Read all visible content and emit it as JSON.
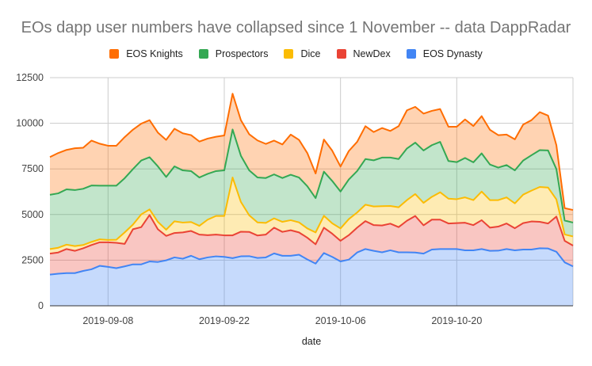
{
  "chart_data": {
    "type": "area",
    "stacked": true,
    "title": "EOs dapp user numbers have collapsed since 1 November -- data DappRadar",
    "xlabel": "date",
    "ylabel": "",
    "ylim": [
      0,
      12500
    ],
    "yticks": [
      "0",
      "2500",
      "5000",
      "7500",
      "10000",
      "12500"
    ],
    "ytick_values": [
      0,
      2500,
      5000,
      7500,
      10000,
      12500
    ],
    "x_start": "2019-09-01",
    "x_end": "2019-11-03",
    "xticks": [
      "2019-09-08",
      "2019-09-22",
      "2019-10-06",
      "2019-10-20"
    ],
    "xtick_day_index": [
      7,
      21,
      35,
      49
    ],
    "grid": true,
    "legend_position": "top",
    "series": [
      {
        "name": "EOS Dynasty",
        "color": "#4285f4",
        "values": [
          1710,
          1760,
          1790,
          1790,
          1910,
          2000,
          2190,
          2130,
          2060,
          2160,
          2270,
          2270,
          2430,
          2400,
          2490,
          2650,
          2580,
          2740,
          2550,
          2650,
          2710,
          2680,
          2610,
          2710,
          2720,
          2620,
          2650,
          2870,
          2740,
          2740,
          2800,
          2540,
          2310,
          2890,
          2680,
          2430,
          2530,
          2920,
          3110,
          3010,
          2930,
          3040,
          2930,
          2930,
          2920,
          2860,
          3080,
          3110,
          3110,
          3110,
          3040,
          3040,
          3110,
          3010,
          3020,
          3110,
          3040,
          3080,
          3080,
          3150,
          3140,
          2960,
          2380,
          2160
        ]
      },
      {
        "name": "NewDex",
        "color": "#ea4335",
        "values": [
          1150,
          1160,
          1320,
          1220,
          1240,
          1330,
          1290,
          1350,
          1390,
          1230,
          1925,
          2040,
          2540,
          1795,
          1340,
          1340,
          1440,
          1360,
          1350,
          1220,
          1190,
          1180,
          1250,
          1350,
          1330,
          1230,
          1250,
          1410,
          1310,
          1400,
          1220,
          1190,
          1060,
          1390,
          1270,
          1130,
          1340,
          1360,
          1530,
          1410,
          1470,
          1460,
          1380,
          1730,
          2000,
          1550,
          1640,
          1610,
          1400,
          1420,
          1510,
          1380,
          1580,
          1270,
          1320,
          1400,
          1210,
          1450,
          1540,
          1450,
          1370,
          1930,
          1180,
          1140
        ]
      },
      {
        "name": "Dice",
        "color": "#fbbc04",
        "values": [
          250,
          260,
          240,
          260,
          180,
          170,
          160,
          130,
          170,
          630,
          255,
          700,
          310,
          405,
          340,
          640,
          540,
          490,
          480,
          850,
          1020,
          1060,
          3170,
          1630,
          910,
          720,
          640,
          510,
          550,
          550,
          550,
          510,
          650,
          650,
          570,
          680,
          880,
          830,
          900,
          1020,
          1060,
          970,
          1090,
          1130,
          1200,
          1230,
          1250,
          1500,
          1360,
          1310,
          1390,
          1370,
          1570,
          1510,
          1450,
          1430,
          1360,
          1560,
          1690,
          1910,
          1970,
          940,
          350,
          500
        ]
      },
      {
        "name": "Prospectors",
        "color": "#34a853",
        "values": [
          2970,
          2980,
          3030,
          3070,
          3080,
          3090,
          2940,
          2970,
          2960,
          2970,
          3040,
          2950,
          2860,
          3040,
          2890,
          3010,
          2860,
          2790,
          2650,
          2510,
          2460,
          2500,
          2630,
          2530,
          2460,
          2460,
          2460,
          2410,
          2400,
          2490,
          2460,
          2310,
          1880,
          2420,
          2320,
          2020,
          2170,
          2270,
          2500,
          2530,
          2660,
          2650,
          2640,
          2830,
          2820,
          2870,
          2830,
          2760,
          2060,
          2030,
          2160,
          2070,
          2090,
          1950,
          1780,
          1770,
          1810,
          1870,
          1940,
          2020,
          2030,
          1660,
          760,
          760
        ]
      },
      {
        "name": "EOS Knights",
        "color": "#ff6d01",
        "values": [
          2070,
          2210,
          2160,
          2290,
          2250,
          2460,
          2300,
          2190,
          2190,
          2250,
          2160,
          2020,
          2030,
          1850,
          2030,
          2060,
          2030,
          1970,
          1970,
          1930,
          1880,
          1910,
          1960,
          1950,
          1980,
          2030,
          1870,
          1850,
          1840,
          2200,
          2060,
          1820,
          1350,
          1760,
          1660,
          1370,
          1560,
          1600,
          1800,
          1550,
          1620,
          1460,
          1800,
          2090,
          1960,
          2020,
          1880,
          1800,
          1880,
          1940,
          2110,
          1990,
          2040,
          1900,
          1780,
          1670,
          1700,
          1970,
          1920,
          2080,
          1910,
          1310,
          680,
          690
        ]
      }
    ],
    "legend_order": [
      "EOS Knights",
      "Prospectors",
      "Dice",
      "NewDex",
      "EOS Dynasty"
    ]
  }
}
